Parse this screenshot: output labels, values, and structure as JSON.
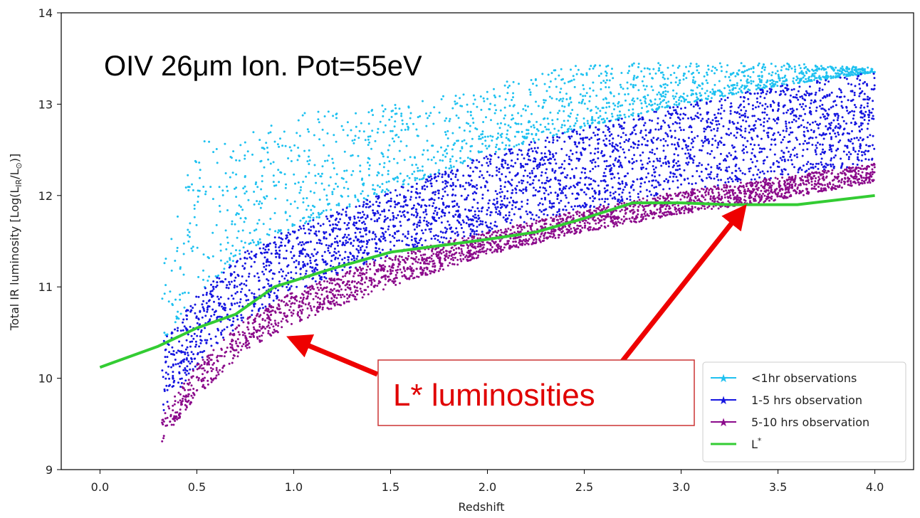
{
  "chart_data": {
    "type": "scatter",
    "title": "OIV 26μm Ion. Pot=55eV",
    "xlabel": "Redshift",
    "ylabel": "Total IR luminosity [Log(L",
    "ylabel_sub": "IR",
    "ylabel_mid": "/L",
    "ylabel_sun": "⊙",
    "ylabel_end": ")]",
    "xlim": [
      -0.2,
      4.2
    ],
    "ylim": [
      9,
      14
    ],
    "xticks": [
      0.0,
      0.5,
      1.0,
      1.5,
      2.0,
      2.5,
      3.0,
      3.5,
      4.0
    ],
    "xtick_labels": [
      "0.0",
      "0.5",
      "1.0",
      "1.5",
      "2.0",
      "2.5",
      "3.0",
      "3.5",
      "4.0"
    ],
    "yticks": [
      9,
      10,
      11,
      12,
      13,
      14
    ],
    "ytick_labels": [
      "9",
      "10",
      "11",
      "12",
      "13",
      "14"
    ],
    "legend_position": "lower-right",
    "series": [
      {
        "name": "<1hr observations",
        "color": "#1ec1f0",
        "marker": "dot",
        "x_range": [
          0.32,
          4.0
        ],
        "lower_boundary": {
          "x": [
            0.32,
            0.5,
            0.75,
            1.0,
            1.5,
            2.0,
            2.5,
            3.0,
            3.5,
            4.0
          ],
          "y": [
            10.4,
            10.9,
            11.4,
            11.65,
            12.05,
            12.45,
            12.75,
            13.0,
            13.2,
            13.35
          ]
        },
        "upper_boundary": {
          "x": [
            0.32,
            0.5,
            0.75,
            1.0,
            1.5,
            2.0,
            2.5,
            3.0,
            3.5,
            4.0
          ],
          "y": [
            12.0,
            12.6,
            12.7,
            12.9,
            13.0,
            13.2,
            13.45,
            13.45,
            13.45,
            13.4
          ]
        }
      },
      {
        "name": "1-5 hrs observation",
        "color": "#1515e0",
        "marker": "dot",
        "x_range": [
          0.32,
          4.0
        ],
        "lower_boundary": {
          "x": [
            0.32,
            0.5,
            0.75,
            1.0,
            1.5,
            2.0,
            2.5,
            3.0,
            3.5,
            4.0
          ],
          "y": [
            9.6,
            10.15,
            10.65,
            10.95,
            11.35,
            11.6,
            11.85,
            12.05,
            12.2,
            12.35
          ]
        },
        "upper_boundary": {
          "x": [
            0.32,
            0.5,
            0.75,
            1.0,
            1.5,
            2.0,
            2.5,
            3.0,
            3.5,
            4.0
          ],
          "y": [
            10.4,
            10.9,
            11.4,
            11.65,
            12.05,
            12.45,
            12.75,
            13.0,
            13.2,
            13.35
          ]
        }
      },
      {
        "name": "5-10 hrs observation",
        "color": "#8b0a8b",
        "marker": "dot",
        "x_range": [
          0.32,
          4.0
        ],
        "lower_boundary": {
          "x": [
            0.32,
            0.5,
            0.75,
            1.0,
            1.5,
            2.0,
            2.5,
            3.0,
            3.5,
            4.0
          ],
          "y": [
            9.3,
            9.8,
            10.3,
            10.6,
            11.0,
            11.35,
            11.6,
            11.8,
            11.95,
            12.15
          ]
        },
        "upper_boundary": {
          "x": [
            0.32,
            0.5,
            0.75,
            1.0,
            1.5,
            2.0,
            2.5,
            3.0,
            3.5,
            4.0
          ],
          "y": [
            9.6,
            10.15,
            10.65,
            10.95,
            11.35,
            11.6,
            11.85,
            12.05,
            12.2,
            12.35
          ]
        }
      },
      {
        "name": "L",
        "name_sup": "*",
        "color": "#33cc33",
        "type": "line",
        "x": [
          0.0,
          0.3,
          0.5,
          0.7,
          0.9,
          1.2,
          1.5,
          2.0,
          2.25,
          2.5,
          2.75,
          3.0,
          3.25,
          3.6,
          4.0
        ],
        "y": [
          10.12,
          10.35,
          10.55,
          10.7,
          11.0,
          11.2,
          11.38,
          11.52,
          11.6,
          11.75,
          11.92,
          11.92,
          11.9,
          11.9,
          12.0
        ]
      }
    ],
    "annotation": {
      "text": "L* luminosities",
      "color": "#e00000",
      "arrow_targets": [
        {
          "x": 1.03,
          "y": 10.43
        },
        {
          "x": 3.35,
          "y": 11.85
        }
      ]
    }
  }
}
